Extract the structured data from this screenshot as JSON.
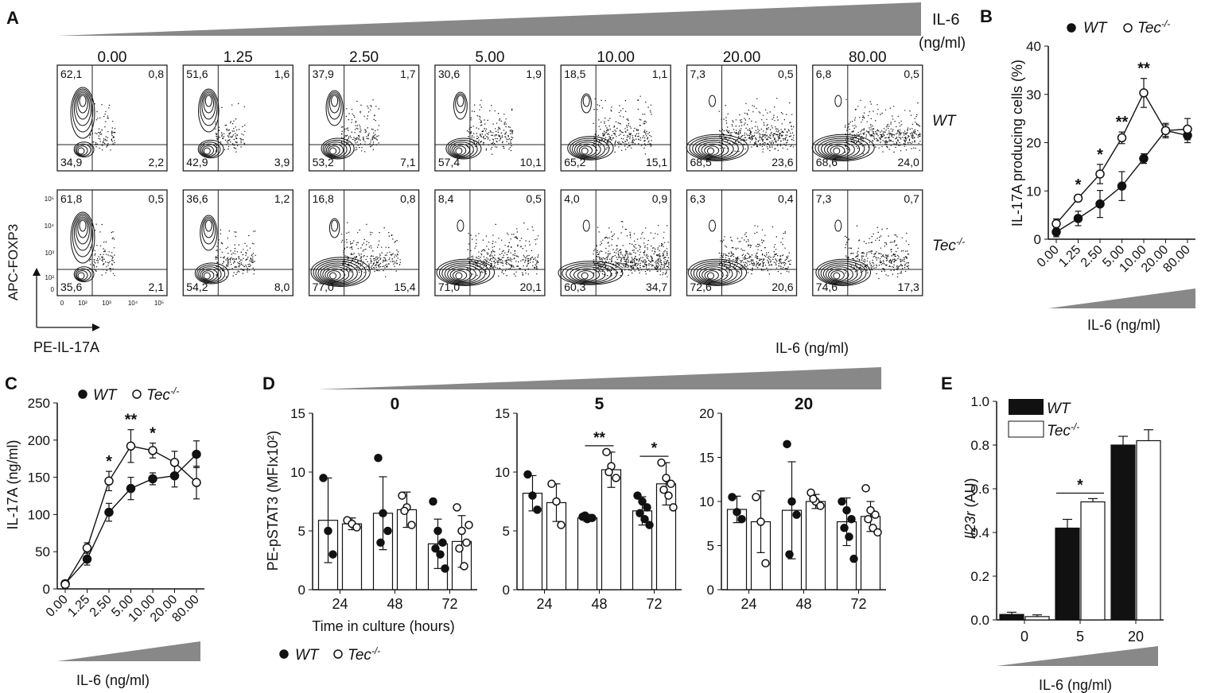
{
  "panels": {
    "A": "A",
    "B": "B",
    "C": "C",
    "D": "D",
    "E": "E"
  },
  "il6_header": "IL-6",
  "il6_header_unit": "(ng/ml)",
  "il6_axis_label": "IL-6 (ng/ml)",
  "colors": {
    "black": "#111111",
    "grey": "#888888",
    "white": "#ffffff"
  },
  "flow": {
    "concentrations": [
      "0.00",
      "1.25",
      "2.50",
      "5.00",
      "10.00",
      "20.00",
      "80.00"
    ],
    "rows": [
      {
        "label": "WT",
        "quadrants": [
          [
            "62,1",
            "0,8",
            "34,9",
            "2,2"
          ],
          [
            "51,6",
            "1,6",
            "42,9",
            "3,9"
          ],
          [
            "37,9",
            "1,7",
            "53,2",
            "7,1"
          ],
          [
            "30,6",
            "1,9",
            "57,4",
            "10,1"
          ],
          [
            "18,5",
            "1,1",
            "65,2",
            "15,1"
          ],
          [
            "7,3",
            "0,5",
            "68,5",
            "23,6"
          ],
          [
            "6,8",
            "0,5",
            "68,6",
            "24,0"
          ]
        ]
      },
      {
        "label": "Tec",
        "label_sup": "-/-",
        "quadrants": [
          [
            "61,8",
            "0,5",
            "35,6",
            "2,1"
          ],
          [
            "36,6",
            "1,2",
            "54,2",
            "8,0"
          ],
          [
            "16,8",
            "0,8",
            "77,0",
            "15,4"
          ],
          [
            "8,4",
            "0,5",
            "71,0",
            "20,1"
          ],
          [
            "4,0",
            "0,9",
            "60,3",
            "34,7"
          ],
          [
            "6,3",
            "0,4",
            "72,6",
            "20,6"
          ],
          [
            "7,3",
            "0,7",
            "74,6",
            "17,3"
          ]
        ]
      }
    ],
    "y_axis_label": "APC-FOXP3",
    "x_axis_label": "PE-IL-17A",
    "y_ticks": [
      "10⁵",
      "10⁴",
      "10³",
      "10²",
      "0"
    ],
    "x_ticks": [
      "0",
      "10²",
      "10³",
      "10⁴",
      "10⁵"
    ]
  },
  "chart_data": [
    {
      "panel": "B",
      "type": "line",
      "ylabel": "IL-17A producing cells (%)",
      "xlabel": "IL-6 (ng/ml)",
      "categories": [
        "0.00",
        "1.25",
        "2.50",
        "5.00",
        "10.00",
        "20.00",
        "80.00"
      ],
      "ylim": [
        0,
        40
      ],
      "yticks": [
        0,
        10,
        20,
        30,
        40
      ],
      "series": [
        {
          "name": "WT",
          "marker": "filled",
          "values": [
            1.5,
            4.3,
            7.3,
            11,
            16.7,
            22.5,
            21.5
          ],
          "err": [
            1,
            1.5,
            2.8,
            3,
            1,
            1.2,
            1.5
          ]
        },
        {
          "name": "Tec",
          "name_sup": "-/-",
          "marker": "open",
          "values": [
            3.2,
            8.5,
            13.5,
            21,
            30.3,
            22.5,
            22.8
          ],
          "err": [
            1,
            0.7,
            2,
            1.2,
            3,
            1.5,
            2.2
          ]
        }
      ],
      "significance": [
        "",
        "*",
        "*",
        "**",
        "**",
        "",
        ""
      ]
    },
    {
      "panel": "C",
      "type": "line",
      "ylabel": "IL-17A (ng/ml)",
      "xlabel": "IL-6 (ng/ml)",
      "categories": [
        "0.00",
        "1.25",
        "2.50",
        "5.00",
        "10.00",
        "20.00",
        "80.00"
      ],
      "ylim": [
        0,
        250
      ],
      "yticks": [
        0,
        50,
        100,
        150,
        200,
        250
      ],
      "series": [
        {
          "name": "WT",
          "marker": "filled",
          "values": [
            7,
            40,
            103,
            135,
            148,
            152,
            181
          ],
          "err": [
            4,
            8,
            12,
            15,
            8,
            15,
            18
          ]
        },
        {
          "name": "Tec",
          "name_sup": "-/-",
          "marker": "open",
          "values": [
            6,
            55,
            145,
            192,
            186,
            170,
            143
          ],
          "err": [
            4,
            7,
            13,
            22,
            10,
            15,
            22
          ]
        }
      ],
      "significance": [
        "",
        "",
        "*",
        "**",
        "*",
        "",
        ""
      ]
    },
    {
      "panel": "D",
      "type": "bar",
      "ylabel": "PE-pSTAT3 (MFIx10²)",
      "xlabel": "Time in culture (hours)",
      "concentration_label": "IL-6 (ng/ml)",
      "subplots": [
        {
          "title": "0",
          "ylim": [
            0,
            15
          ],
          "yticks": [
            0,
            5,
            10,
            15
          ],
          "categories": [
            "24",
            "48",
            "72"
          ],
          "WT": [
            5.9,
            6.5,
            3.9
          ],
          "WT_err": [
            3.6,
            3.1,
            2.1
          ],
          "Tec": [
            5.6,
            6.8,
            4.1
          ],
          "Tec_err": [
            0.5,
            1.5,
            2.2
          ],
          "WT_points": [
            [
              9.5,
              5.0,
              3.0
            ],
            [
              11.2,
              6.5,
              5.0,
              4.0
            ],
            [
              7.5,
              5.0,
              4.0,
              3.5,
              3.0,
              1.8
            ]
          ],
          "Tec_points": [
            [
              5.9,
              5.6,
              5.3
            ],
            [
              8.0,
              7.0,
              5.5,
              6.7
            ],
            [
              7.0,
              5.0,
              4.0,
              3.5,
              2.0,
              5.5
            ]
          ],
          "significance": [
            "",
            "",
            ""
          ]
        },
        {
          "title": "5",
          "ylim": [
            0,
            15
          ],
          "yticks": [
            0,
            5,
            10,
            15
          ],
          "categories": [
            "24",
            "48",
            "72"
          ],
          "WT": [
            8.2,
            6.1,
            6.7
          ],
          "WT_err": [
            1.5,
            0.3,
            1.2
          ],
          "Tec": [
            7.4,
            10.2,
            9.0
          ],
          "Tec_err": [
            1.6,
            1.5,
            1.8
          ],
          "WT_points": [
            [
              9.8,
              8.0,
              6.8
            ],
            [
              6.2,
              6.0,
              6.1,
              6.3
            ],
            [
              8.0,
              7.5,
              7.0,
              6.5,
              6.0,
              5.5
            ]
          ],
          "Tec_points": [
            [
              9.0,
              7.5,
              5.5
            ],
            [
              11.7,
              10.5,
              9.5,
              10.0
            ],
            [
              10.8,
              9.5,
              9.0,
              8.5,
              8.0,
              7.0
            ]
          ],
          "significance": [
            "",
            "**",
            "*"
          ]
        },
        {
          "title": "20",
          "ylim": [
            0,
            20
          ],
          "yticks": [
            0,
            5,
            10,
            15,
            20
          ],
          "categories": [
            "24",
            "48",
            "72"
          ],
          "WT": [
            9.1,
            9.0,
            7.7
          ],
          "WT_err": [
            1.5,
            5.5,
            2.7
          ],
          "Tec": [
            7.7,
            10.0,
            8.3
          ],
          "Tec_err": [
            3.5,
            0.8,
            1.7
          ],
          "WT_points": [
            [
              10.5,
              8.8,
              8.0
            ],
            [
              16.5,
              10.0,
              8.5,
              4.0
            ],
            [
              10.0,
              9.0,
              8.0,
              7.0,
              6.0,
              3.5
            ]
          ],
          "Tec_points": [
            [
              10.5,
              7.7,
              3.0
            ],
            [
              11.0,
              10.0,
              9.5,
              10.3
            ],
            [
              11.5,
              9.0,
              8.5,
              8.0,
              7.0,
              6.5
            ]
          ],
          "significance": [
            "",
            "",
            ""
          ]
        }
      ],
      "legend": [
        {
          "name": "WT",
          "marker": "filled"
        },
        {
          "name": "Tec",
          "name_sup": "-/-",
          "marker": "open"
        }
      ]
    },
    {
      "panel": "E",
      "type": "bar",
      "ylabel": "Il23r (AU)",
      "xlabel": "IL-6 (ng/ml)",
      "categories": [
        "0",
        "5",
        "20"
      ],
      "ylim": [
        0,
        1.0
      ],
      "yticks": [
        "0.0",
        "0.2",
        "0.4",
        "0.6",
        "0.8",
        "1.0"
      ],
      "series": [
        {
          "name": "WT",
          "fill": "#111111",
          "values": [
            0.025,
            0.42,
            0.8
          ],
          "err": [
            0.01,
            0.04,
            0.04
          ]
        },
        {
          "name": "Tec",
          "name_sup": "-/-",
          "fill": "#ffffff",
          "values": [
            0.015,
            0.54,
            0.82
          ],
          "err": [
            0.008,
            0.015,
            0.05
          ]
        }
      ],
      "significance": [
        "",
        "*",
        ""
      ]
    }
  ]
}
